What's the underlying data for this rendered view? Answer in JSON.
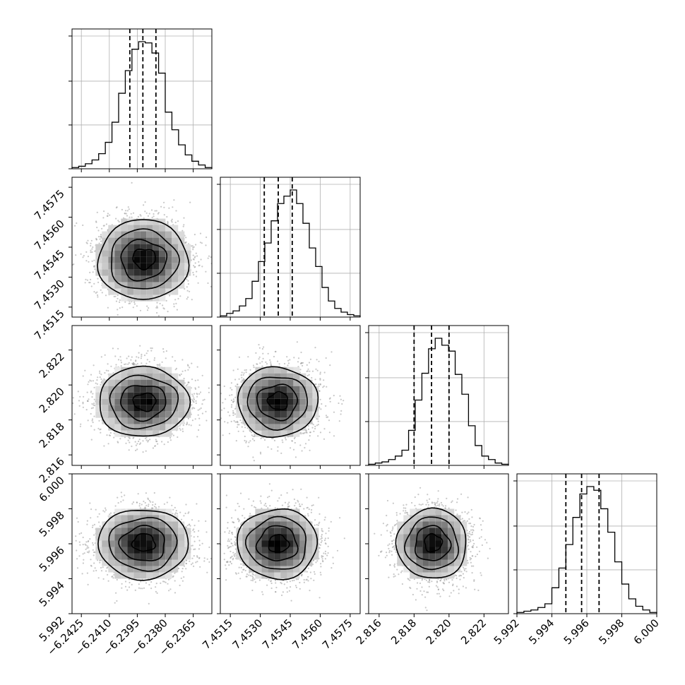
{
  "chart_data": {
    "type": "corner",
    "title": "",
    "parameters": [
      {
        "range": [
          -6.243,
          -6.2355
        ],
        "ticks": [
          -6.2425,
          -6.241,
          -6.2395,
          -6.238,
          -6.2365
        ],
        "tick_labels": [
          "−6.2425",
          "−6.2410",
          "−6.2395",
          "−6.2380",
          "−6.2365"
        ],
        "quantiles": [
          -6.2399,
          -6.2392,
          -6.2385
        ],
        "hist_counts": [
          1,
          2,
          4,
          7,
          12,
          21,
          37,
          60,
          78,
          95,
          101,
          100,
          92,
          76,
          45,
          31,
          19,
          11,
          6,
          3,
          1
        ]
      },
      {
        "range": [
          7.451,
          7.458
        ],
        "ticks": [
          7.4515,
          7.453,
          7.4545,
          7.456,
          7.4575
        ],
        "tick_labels": [
          "7.4515",
          "7.4530",
          "7.4545",
          "7.4560",
          "7.4575"
        ],
        "quantiles": [
          7.4532,
          7.4539,
          7.4546
        ],
        "hist_counts": [
          1,
          3,
          5,
          9,
          15,
          29,
          45,
          60,
          78,
          92,
          98,
          103,
          92,
          76,
          56,
          41,
          24,
          13,
          7,
          4,
          2,
          1
        ]
      },
      {
        "range": [
          2.8154,
          2.8234
        ],
        "ticks": [
          2.816,
          2.818,
          2.82,
          2.822
        ],
        "tick_labels": [
          "2.816",
          "2.818",
          "2.820",
          "2.822"
        ],
        "quantiles": [
          2.818,
          2.819,
          2.82
        ],
        "hist_counts": [
          1,
          2,
          3,
          5,
          8,
          13,
          30,
          56,
          79,
          100,
          109,
          103,
          98,
          78,
          61,
          34,
          17,
          8,
          5,
          2,
          1
        ]
      },
      {
        "range": [
          5.992,
          6.0
        ],
        "ticks": [
          5.992,
          5.994,
          5.996,
          5.998,
          6.0
        ],
        "tick_labels": [
          "5.992",
          "5.994",
          "5.996",
          "5.998",
          "6.000"
        ],
        "quantiles": [
          5.9948,
          5.9957,
          5.9967
        ],
        "hist_counts": [
          1,
          2,
          3,
          5,
          8,
          21,
          37,
          56,
          78,
          97,
          103,
          100,
          85,
          66,
          42,
          24,
          12,
          6,
          3,
          1
        ]
      }
    ],
    "diagonal_hist_ticks": [
      0,
      0.33,
      0.66,
      1.0
    ],
    "pairs": [
      {
        "row": 1,
        "col": 0,
        "center": [
          -6.23918,
          7.45386
        ],
        "sigma": [
          0.00121,
          0.001
        ],
        "peak_offset": [
          5e-05,
          7e-05
        ]
      },
      {
        "row": 2,
        "col": 0,
        "center": [
          -6.23918,
          2.81903
        ],
        "sigma": [
          0.00121,
          0.001
        ],
        "peak_offset": [
          8e-05,
          0.0
        ]
      },
      {
        "row": 2,
        "col": 1,
        "center": [
          7.45386,
          2.81903
        ],
        "sigma": [
          0.001,
          0.001
        ],
        "peak_offset": [
          4e-05,
          5e-05
        ]
      },
      {
        "row": 3,
        "col": 0,
        "center": [
          -6.23918,
          5.996
        ],
        "sigma": [
          0.00121,
          0.001
        ],
        "peak_offset": [
          3e-05,
          6e-05
        ]
      },
      {
        "row": 3,
        "col": 1,
        "center": [
          7.45386,
          5.996
        ],
        "sigma": [
          0.001,
          0.001
        ],
        "peak_offset": [
          5e-05,
          0.0
        ]
      },
      {
        "row": 3,
        "col": 2,
        "center": [
          2.81903,
          5.996
        ],
        "sigma": [
          0.001,
          0.001
        ],
        "peak_offset": [
          5e-05,
          5e-05
        ]
      }
    ],
    "contour_levels_sigma": [
      0.5,
      1.0,
      1.5,
      2.0
    ],
    "grid": true,
    "colors": {
      "contour": "#000000",
      "hist": "#000000",
      "points": "#9a9a9a",
      "grid": "#b0b0b0"
    }
  }
}
